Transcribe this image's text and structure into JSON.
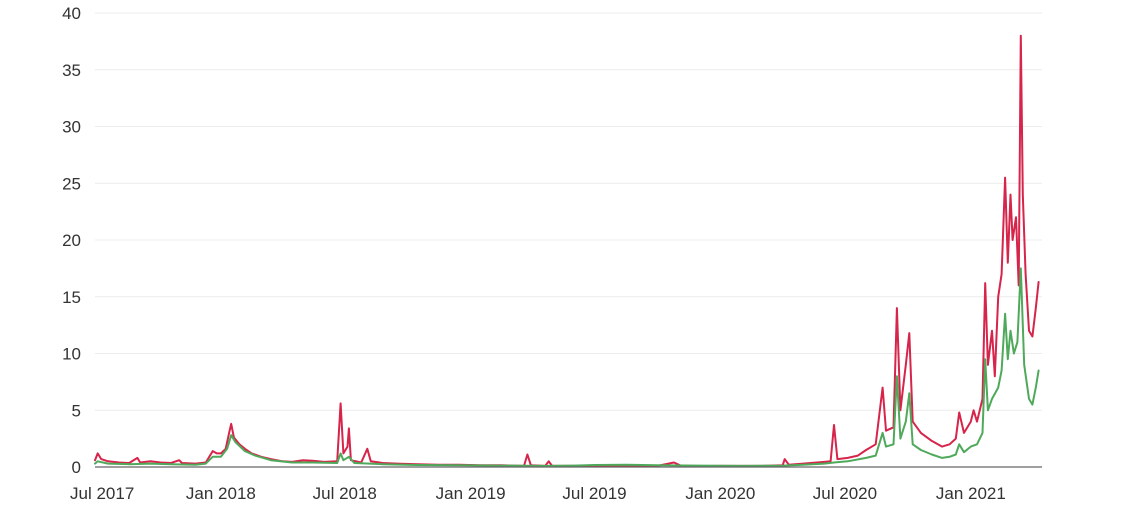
{
  "chart_data": {
    "type": "line",
    "title": "",
    "xlabel": "",
    "ylabel": "",
    "grid": "horizontal",
    "legend": "none",
    "ylim": [
      0,
      40
    ],
    "xlim": [
      "2017-07-01",
      "2021-04-15"
    ],
    "y_ticks": [
      0,
      5,
      10,
      15,
      20,
      25,
      30,
      35,
      40
    ],
    "y_tick_labels": [
      "0",
      "5",
      "10",
      "15",
      "20",
      "25",
      "30",
      "35",
      "40"
    ],
    "x_ticks": [
      {
        "date": "2017-07-01",
        "label": "Jul 2017"
      },
      {
        "date": "2018-01-01",
        "label": "Jan 2018"
      },
      {
        "date": "2018-07-01",
        "label": "Jul 2018"
      },
      {
        "date": "2019-01-01",
        "label": "Jan 2019"
      },
      {
        "date": "2019-07-01",
        "label": "Jul 2019"
      },
      {
        "date": "2020-01-01",
        "label": "Jan 2020"
      },
      {
        "date": "2020-07-01",
        "label": "Jul 2020"
      },
      {
        "date": "2021-01-01",
        "label": "Jan 2021"
      }
    ],
    "series": [
      {
        "color": "#d6244a",
        "points": [
          [
            "2017-07-01",
            0.6
          ],
          [
            "2017-07-05",
            1.2
          ],
          [
            "2017-07-10",
            0.7
          ],
          [
            "2017-07-20",
            0.5
          ],
          [
            "2017-08-05",
            0.4
          ],
          [
            "2017-08-20",
            0.35
          ],
          [
            "2017-09-01",
            0.8
          ],
          [
            "2017-09-05",
            0.4
          ],
          [
            "2017-09-20",
            0.5
          ],
          [
            "2017-10-05",
            0.4
          ],
          [
            "2017-10-20",
            0.35
          ],
          [
            "2017-11-01",
            0.6
          ],
          [
            "2017-11-05",
            0.35
          ],
          [
            "2017-11-25",
            0.3
          ],
          [
            "2017-12-10",
            0.4
          ],
          [
            "2017-12-20",
            1.4
          ],
          [
            "2017-12-26",
            1.2
          ],
          [
            "2018-01-01",
            1.2
          ],
          [
            "2018-01-08",
            1.6
          ],
          [
            "2018-01-13",
            3.0
          ],
          [
            "2018-01-16",
            3.8
          ],
          [
            "2018-01-20",
            2.6
          ],
          [
            "2018-01-28",
            2.0
          ],
          [
            "2018-02-05",
            1.6
          ],
          [
            "2018-02-15",
            1.2
          ],
          [
            "2018-03-01",
            0.9
          ],
          [
            "2018-03-15",
            0.7
          ],
          [
            "2018-04-01",
            0.5
          ],
          [
            "2018-04-15",
            0.45
          ],
          [
            "2018-05-01",
            0.6
          ],
          [
            "2018-05-15",
            0.55
          ],
          [
            "2018-06-01",
            0.45
          ],
          [
            "2018-06-20",
            0.5
          ],
          [
            "2018-06-25",
            5.6
          ],
          [
            "2018-06-29",
            1.2
          ],
          [
            "2018-07-05",
            1.8
          ],
          [
            "2018-07-07",
            3.4
          ],
          [
            "2018-07-10",
            0.6
          ],
          [
            "2018-07-25",
            0.4
          ],
          [
            "2018-08-03",
            1.6
          ],
          [
            "2018-08-08",
            0.5
          ],
          [
            "2018-08-25",
            0.35
          ],
          [
            "2018-09-15",
            0.3
          ],
          [
            "2018-10-15",
            0.25
          ],
          [
            "2018-11-15",
            0.2
          ],
          [
            "2018-12-15",
            0.2
          ],
          [
            "2019-01-15",
            0.15
          ],
          [
            "2019-02-15",
            0.15
          ],
          [
            "2019-03-20",
            0.1
          ],
          [
            "2019-03-25",
            1.1
          ],
          [
            "2019-03-30",
            0.15
          ],
          [
            "2019-04-20",
            0.1
          ],
          [
            "2019-04-25",
            0.5
          ],
          [
            "2019-04-30",
            0.1
          ],
          [
            "2019-06-01",
            0.1
          ],
          [
            "2019-07-01",
            0.12
          ],
          [
            "2019-08-01",
            0.1
          ],
          [
            "2019-09-01",
            0.1
          ],
          [
            "2019-10-01",
            0.1
          ],
          [
            "2019-10-25",
            0.4
          ],
          [
            "2019-11-05",
            0.1
          ],
          [
            "2019-12-01",
            0.08
          ],
          [
            "2020-01-01",
            0.1
          ],
          [
            "2020-02-01",
            0.1
          ],
          [
            "2020-03-01",
            0.1
          ],
          [
            "2020-04-01",
            0.15
          ],
          [
            "2020-04-04",
            0.7
          ],
          [
            "2020-04-10",
            0.2
          ],
          [
            "2020-05-01",
            0.3
          ],
          [
            "2020-06-01",
            0.45
          ],
          [
            "2020-06-10",
            0.5
          ],
          [
            "2020-06-15",
            3.7
          ],
          [
            "2020-06-20",
            0.7
          ],
          [
            "2020-07-05",
            0.8
          ],
          [
            "2020-07-20",
            1.0
          ],
          [
            "2020-08-01",
            1.5
          ],
          [
            "2020-08-15",
            2.0
          ],
          [
            "2020-08-25",
            7.0
          ],
          [
            "2020-08-30",
            3.2
          ],
          [
            "2020-09-10",
            3.5
          ],
          [
            "2020-09-15",
            14.0
          ],
          [
            "2020-09-20",
            5.0
          ],
          [
            "2020-09-28",
            9.0
          ],
          [
            "2020-10-03",
            11.8
          ],
          [
            "2020-10-08",
            4.0
          ],
          [
            "2020-10-20",
            3.0
          ],
          [
            "2020-11-05",
            2.3
          ],
          [
            "2020-11-20",
            1.8
          ],
          [
            "2020-12-01",
            2.0
          ],
          [
            "2020-12-10",
            2.5
          ],
          [
            "2020-12-15",
            4.8
          ],
          [
            "2020-12-22",
            3.0
          ],
          [
            "2021-01-01",
            4.0
          ],
          [
            "2021-01-05",
            5.0
          ],
          [
            "2021-01-10",
            4.0
          ],
          [
            "2021-01-18",
            6.0
          ],
          [
            "2021-01-22",
            16.2
          ],
          [
            "2021-01-26",
            9.0
          ],
          [
            "2021-02-01",
            12.0
          ],
          [
            "2021-02-05",
            8.0
          ],
          [
            "2021-02-10",
            15.0
          ],
          [
            "2021-02-15",
            17.0
          ],
          [
            "2021-02-20",
            25.5
          ],
          [
            "2021-02-24",
            18.0
          ],
          [
            "2021-02-28",
            24.0
          ],
          [
            "2021-03-03",
            20.0
          ],
          [
            "2021-03-08",
            22.0
          ],
          [
            "2021-03-12",
            16.0
          ],
          [
            "2021-03-15",
            38.0
          ],
          [
            "2021-03-18",
            24.0
          ],
          [
            "2021-03-22",
            17.0
          ],
          [
            "2021-03-27",
            12.0
          ],
          [
            "2021-04-01",
            11.5
          ],
          [
            "2021-04-06",
            14.0
          ],
          [
            "2021-04-10",
            16.3
          ]
        ]
      },
      {
        "color": "#4fa95b",
        "points": [
          [
            "2017-07-01",
            0.3
          ],
          [
            "2017-07-05",
            0.5
          ],
          [
            "2017-07-20",
            0.3
          ],
          [
            "2017-08-20",
            0.25
          ],
          [
            "2017-09-20",
            0.3
          ],
          [
            "2017-10-20",
            0.25
          ],
          [
            "2017-11-25",
            0.2
          ],
          [
            "2017-12-10",
            0.3
          ],
          [
            "2017-12-20",
            0.9
          ],
          [
            "2018-01-01",
            0.9
          ],
          [
            "2018-01-10",
            1.6
          ],
          [
            "2018-01-16",
            2.8
          ],
          [
            "2018-01-22",
            2.2
          ],
          [
            "2018-02-05",
            1.4
          ],
          [
            "2018-02-20",
            1.0
          ],
          [
            "2018-03-15",
            0.6
          ],
          [
            "2018-04-15",
            0.4
          ],
          [
            "2018-05-15",
            0.4
          ],
          [
            "2018-06-20",
            0.35
          ],
          [
            "2018-06-25",
            1.2
          ],
          [
            "2018-06-29",
            0.6
          ],
          [
            "2018-07-07",
            0.9
          ],
          [
            "2018-07-15",
            0.35
          ],
          [
            "2018-08-25",
            0.25
          ],
          [
            "2018-10-15",
            0.18
          ],
          [
            "2018-12-15",
            0.15
          ],
          [
            "2019-02-15",
            0.12
          ],
          [
            "2019-04-20",
            0.1
          ],
          [
            "2019-06-01",
            0.12
          ],
          [
            "2019-07-01",
            0.18
          ],
          [
            "2019-08-15",
            0.2
          ],
          [
            "2019-10-01",
            0.15
          ],
          [
            "2019-12-01",
            0.12
          ],
          [
            "2020-02-01",
            0.1
          ],
          [
            "2020-04-01",
            0.12
          ],
          [
            "2020-05-01",
            0.2
          ],
          [
            "2020-06-01",
            0.3
          ],
          [
            "2020-06-15",
            0.4
          ],
          [
            "2020-07-05",
            0.5
          ],
          [
            "2020-08-01",
            0.8
          ],
          [
            "2020-08-15",
            1.0
          ],
          [
            "2020-08-25",
            3.0
          ],
          [
            "2020-08-30",
            1.8
          ],
          [
            "2020-09-10",
            2.0
          ],
          [
            "2020-09-15",
            8.0
          ],
          [
            "2020-09-20",
            2.5
          ],
          [
            "2020-09-28",
            4.0
          ],
          [
            "2020-10-03",
            6.5
          ],
          [
            "2020-10-08",
            2.0
          ],
          [
            "2020-10-20",
            1.5
          ],
          [
            "2020-11-05",
            1.1
          ],
          [
            "2020-11-20",
            0.8
          ],
          [
            "2020-12-01",
            0.9
          ],
          [
            "2020-12-10",
            1.1
          ],
          [
            "2020-12-15",
            2.0
          ],
          [
            "2020-12-22",
            1.3
          ],
          [
            "2021-01-01",
            1.8
          ],
          [
            "2021-01-10",
            2.0
          ],
          [
            "2021-01-18",
            3.0
          ],
          [
            "2021-01-22",
            9.5
          ],
          [
            "2021-01-26",
            5.0
          ],
          [
            "2021-02-01",
            6.0
          ],
          [
            "2021-02-10",
            7.0
          ],
          [
            "2021-02-15",
            8.5
          ],
          [
            "2021-02-20",
            13.5
          ],
          [
            "2021-02-24",
            9.5
          ],
          [
            "2021-02-28",
            12.0
          ],
          [
            "2021-03-05",
            10.0
          ],
          [
            "2021-03-10",
            11.0
          ],
          [
            "2021-03-15",
            17.5
          ],
          [
            "2021-03-20",
            9.0
          ],
          [
            "2021-03-27",
            6.0
          ],
          [
            "2021-04-01",
            5.5
          ],
          [
            "2021-04-06",
            7.0
          ],
          [
            "2021-04-10",
            8.5
          ]
        ]
      }
    ]
  }
}
